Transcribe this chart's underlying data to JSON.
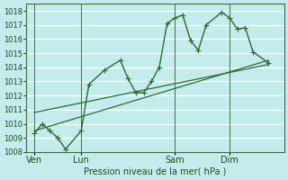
{
  "xlabel": "Pression niveau de la mer( hPa )",
  "bg_color": "#c5eced",
  "grid_color": "#ffffff",
  "line_color": "#2d6a2d",
  "ylim": [
    1008,
    1018.5
  ],
  "yticks": [
    1008,
    1009,
    1010,
    1011,
    1012,
    1013,
    1014,
    1015,
    1016,
    1017,
    1018
  ],
  "ytick_fontsize": 6,
  "xlabel_fontsize": 7,
  "xtick_fontsize": 7,
  "xtick_labels": [
    "Ven",
    "Lun",
    "Sam",
    "Dim"
  ],
  "xtick_positions": [
    0.5,
    3.5,
    9.5,
    13.0
  ],
  "xlim": [
    0,
    16.5
  ],
  "vline_x": [
    0.5,
    3.5,
    9.5,
    13.0
  ],
  "line1_x": [
    0.5,
    1.0,
    1.5,
    2.0,
    2.5,
    3.5,
    4.0,
    5.0,
    6.0,
    6.5,
    7.0,
    7.5,
    8.0,
    8.5,
    9.0,
    9.5,
    10.0,
    10.5,
    11.0,
    11.5,
    12.5,
    13.0,
    13.5,
    14.0,
    14.5,
    15.5
  ],
  "line1_y": [
    1009.3,
    1010.0,
    1009.5,
    1009.0,
    1008.2,
    1009.5,
    1012.8,
    1013.8,
    1014.5,
    1013.2,
    1012.2,
    1012.2,
    1013.0,
    1014.0,
    1017.1,
    1017.5,
    1017.7,
    1015.9,
    1015.2,
    1017.0,
    1017.9,
    1017.5,
    1016.7,
    1016.8,
    1015.1,
    1014.3
  ],
  "line2_x": [
    0.5,
    15.5
  ],
  "line2_y": [
    1009.5,
    1014.5
  ],
  "line3_x": [
    0.5,
    15.5
  ],
  "line3_y": [
    1010.8,
    1014.2
  ],
  "marker_size": 2.8,
  "linewidth": 1.0,
  "trend_linewidth": 0.9
}
